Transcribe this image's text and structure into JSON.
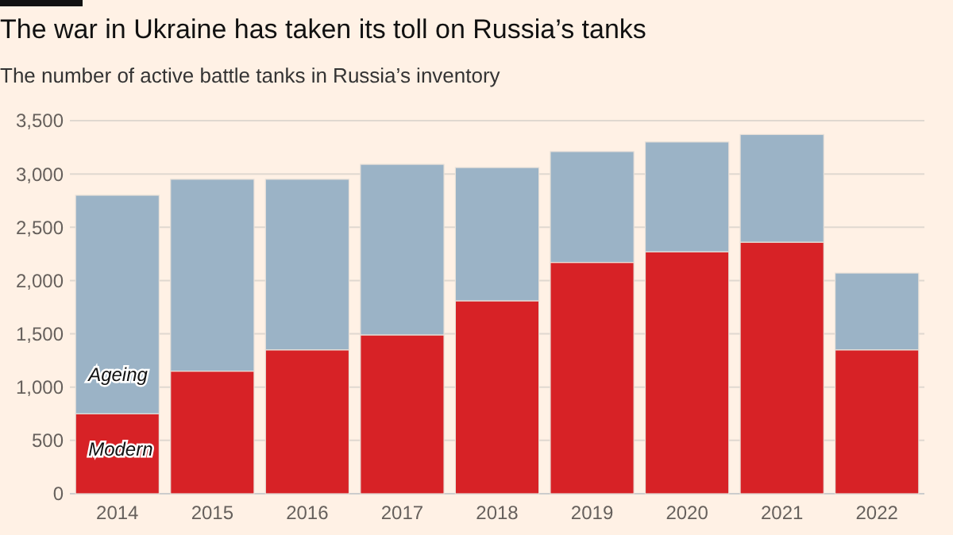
{
  "chart_data": {
    "type": "bar",
    "title": "The war in Ukraine has taken its toll on Russia’s tanks",
    "subtitle": "The number of active battle tanks in Russia’s inventory",
    "categories": [
      "2014",
      "2015",
      "2016",
      "2017",
      "2018",
      "2019",
      "2020",
      "2021",
      "2022"
    ],
    "series": [
      {
        "name": "Modern",
        "color": "#d72226",
        "values": [
          750,
          1150,
          1350,
          1490,
          1810,
          2170,
          2270,
          2360,
          1350
        ]
      },
      {
        "name": "Ageing",
        "color": "#9bb3c6",
        "values": [
          2050,
          1800,
          1600,
          1600,
          1250,
          1040,
          1030,
          1010,
          720
        ]
      }
    ],
    "stacked": true,
    "ylim": [
      0,
      3500
    ],
    "yticks": [
      0,
      {
        "value": 500,
        "label": "500"
      },
      {
        "value": 1000,
        "label": "1,000"
      },
      {
        "value": 1500,
        "label": "1,500"
      },
      {
        "value": 2000,
        "label": "2,000"
      },
      {
        "value": 2500,
        "label": "2,500"
      },
      {
        "value": 3000,
        "label": "3,000"
      },
      {
        "value": 3500,
        "label": "3,500"
      }
    ],
    "grid": "y",
    "legend": false
  }
}
